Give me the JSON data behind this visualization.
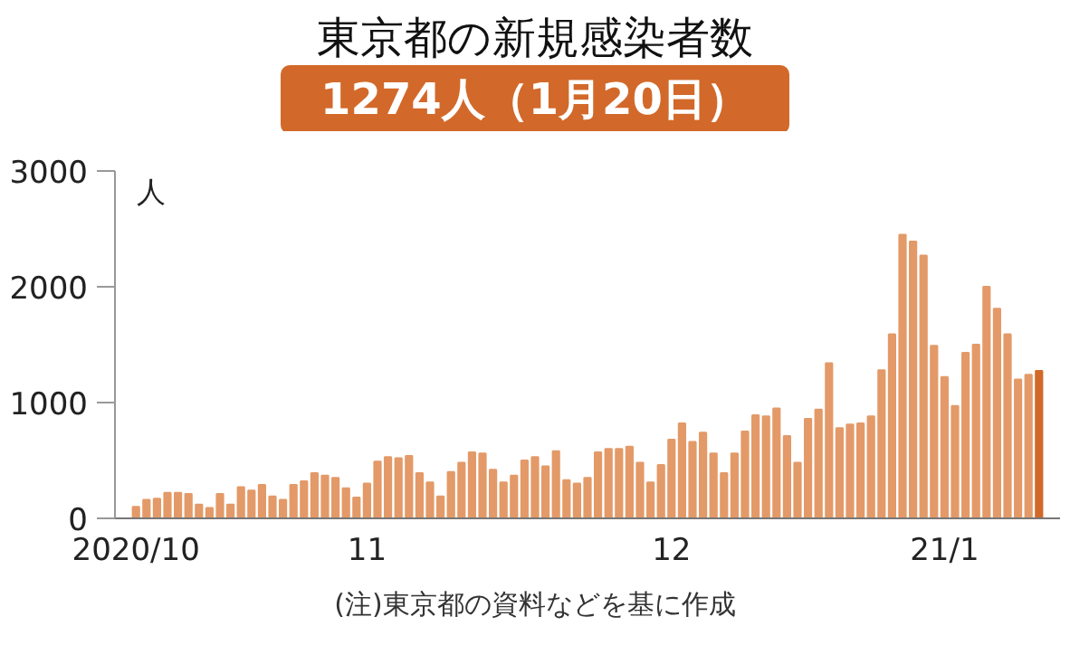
{
  "chart_data": {
    "type": "bar",
    "title": "東京都の新規感染者数",
    "subtitle": "1274人（1月20日）",
    "ylabel": "人",
    "x": [
      "2020-10-26",
      "2020-10-27",
      "2020-10-28",
      "2020-10-29",
      "2020-10-30",
      "2020-10-31",
      "2020-11-01",
      "2020-11-02",
      "2020-11-03",
      "2020-11-04",
      "2020-11-05",
      "2020-11-06",
      "2020-11-07",
      "2020-11-08",
      "2020-11-09",
      "2020-11-10",
      "2020-11-11",
      "2020-11-12",
      "2020-11-13",
      "2020-11-14",
      "2020-11-15",
      "2020-11-16",
      "2020-11-17",
      "2020-11-18",
      "2020-11-19",
      "2020-11-20",
      "2020-11-21",
      "2020-11-22",
      "2020-11-23",
      "2020-11-24",
      "2020-11-25",
      "2020-11-26",
      "2020-11-27",
      "2020-11-28",
      "2020-11-29",
      "2020-11-30",
      "2020-12-01",
      "2020-12-02",
      "2020-12-03",
      "2020-12-04",
      "2020-12-05",
      "2020-12-06",
      "2020-12-07",
      "2020-12-08",
      "2020-12-09",
      "2020-12-10",
      "2020-12-11",
      "2020-12-12",
      "2020-12-13",
      "2020-12-14",
      "2020-12-15",
      "2020-12-16",
      "2020-12-17",
      "2020-12-18",
      "2020-12-19",
      "2020-12-20",
      "2020-12-21",
      "2020-12-22",
      "2020-12-23",
      "2020-12-24",
      "2020-12-25",
      "2020-12-26",
      "2020-12-27",
      "2020-12-28",
      "2020-12-29",
      "2020-12-30",
      "2020-12-31",
      "2021-01-01",
      "2021-01-02",
      "2021-01-03",
      "2021-01-04",
      "2021-01-05",
      "2021-01-06",
      "2021-01-07",
      "2021-01-08",
      "2021-01-09",
      "2021-01-10",
      "2021-01-11",
      "2021-01-12",
      "2021-01-13",
      "2021-01-14",
      "2021-01-15",
      "2021-01-16",
      "2021-01-17",
      "2021-01-18",
      "2021-01-19",
      "2021-01-20"
    ],
    "values": [
      100,
      160,
      170,
      220,
      220,
      210,
      120,
      90,
      210,
      120,
      270,
      240,
      290,
      190,
      160,
      290,
      320,
      390,
      370,
      350,
      260,
      180,
      300,
      490,
      530,
      520,
      540,
      390,
      310,
      190,
      400,
      480,
      570,
      560,
      420,
      310,
      370,
      500,
      530,
      450,
      580,
      330,
      300,
      350,
      570,
      600,
      600,
      620,
      480,
      310,
      460,
      680,
      820,
      660,
      740,
      560,
      390,
      560,
      750,
      890,
      880,
      950,
      710,
      480,
      860,
      940,
      1340,
      780,
      810,
      820,
      880,
      1280,
      1590,
      2450,
      2390,
      2270,
      1490,
      1220,
      970,
      1430,
      1500,
      2000,
      1810,
      1590,
      1200,
      1240,
      1274
    ],
    "colors": [
      "#e39a68",
      "#e39a68",
      "#e39a68",
      "#e39a68",
      "#e39a68",
      "#e39a68",
      "#e39a68",
      "#e39a68",
      "#e39a68",
      "#e39a68",
      "#e39a68",
      "#e39a68",
      "#e39a68",
      "#e39a68",
      "#e39a68",
      "#e39a68",
      "#e39a68",
      "#e39a68",
      "#e39a68",
      "#e39a68",
      "#e39a68",
      "#e39a68",
      "#e39a68",
      "#e39a68",
      "#e39a68",
      "#e39a68",
      "#e39a68",
      "#e39a68",
      "#e39a68",
      "#e39a68",
      "#e39a68",
      "#e39a68",
      "#e39a68",
      "#e39a68",
      "#e39a68",
      "#e39a68",
      "#e39a68",
      "#e39a68",
      "#e39a68",
      "#e39a68",
      "#e39a68",
      "#e39a68",
      "#e39a68",
      "#e39a68",
      "#e39a68",
      "#e39a68",
      "#e39a68",
      "#e39a68",
      "#e39a68",
      "#e39a68",
      "#e39a68",
      "#e39a68",
      "#e39a68",
      "#e39a68",
      "#e39a68",
      "#e39a68",
      "#e39a68",
      "#e39a68",
      "#e39a68",
      "#e39a68",
      "#e39a68",
      "#e39a68",
      "#e39a68",
      "#e39a68",
      "#e39a68",
      "#e39a68",
      "#e39a68",
      "#e39a68",
      "#e39a68",
      "#e39a68",
      "#e39a68",
      "#e39a68",
      "#e39a68",
      "#e39a68",
      "#e39a68",
      "#e39a68",
      "#e39a68",
      "#e39a68",
      "#e39a68",
      "#e39a68",
      "#e39a68",
      "#e39a68",
      "#e39a68",
      "#e39a68",
      "#e39a68",
      "#e39a68",
      "#d2692a"
    ],
    "xlim": [
      "2020-10-24",
      "2021-01-22"
    ],
    "xticks": [
      {
        "value": "2020-10-26",
        "label": "2020/10"
      },
      {
        "value": "2020-11-01",
        "label": null
      },
      {
        "value": "2020-11-17",
        "label": "11"
      },
      {
        "value": "2020-12-01",
        "label": null
      },
      {
        "value": "2020-12-16",
        "label": "12"
      },
      {
        "value": "2021-01-01",
        "label": null
      },
      {
        "value": "2021-01-11",
        "label": "21/1"
      }
    ],
    "ylim": [
      0,
      3000
    ],
    "yticks": [
      0,
      1000,
      2000,
      3000
    ],
    "grid": false,
    "annotations": [
      "(注)東京都の資料などを基に作成"
    ]
  }
}
